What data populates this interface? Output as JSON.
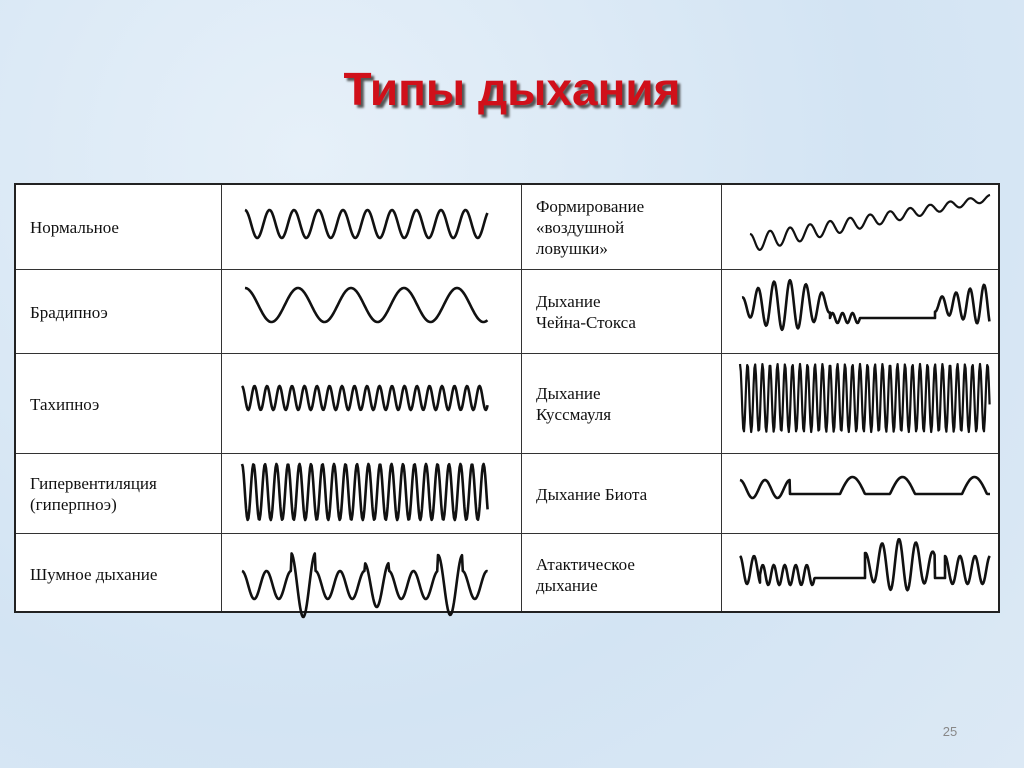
{
  "title": "Типы дыхания",
  "table": {
    "rows": [
      {
        "left": [
          "Нормальное"
        ],
        "right": [
          "Формирование",
          "«воздушной",
          "ловушки»"
        ]
      },
      {
        "left": [
          "Брадипноэ"
        ],
        "right": [
          "Дыхание",
          "Чейна-Стокса"
        ]
      },
      {
        "left": [
          "Тахипноэ"
        ],
        "right": [
          "Дыхание",
          "Куссмауля"
        ]
      },
      {
        "left": [
          "Гипервентиляция",
          "(гиперпноэ)"
        ],
        "right": [
          "Дыхание Биота"
        ]
      },
      {
        "left": [
          "Шумное дыхание"
        ],
        "right": [
          "Атактическое",
          "дыхание"
        ]
      }
    ]
  },
  "page_number": "25"
}
